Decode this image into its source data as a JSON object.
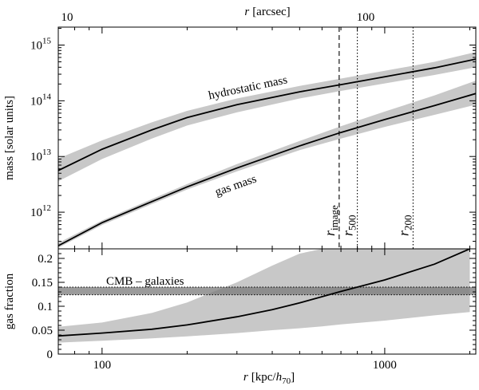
{
  "chart_data": [
    {
      "type": "line",
      "panel": "top",
      "xscale": "log",
      "yscale": "log",
      "xlim": [
        70,
        2100
      ],
      "ylim": [
        220000000000.0,
        2100000000000000.0
      ],
      "top_axis": {
        "label_var": "r",
        "label_unit": "[arcsec]",
        "ticks": [
          {
            "value": 10,
            "label": "10"
          },
          {
            "value": 100,
            "label": "100"
          }
        ]
      },
      "ylabel": "mass [solar units]",
      "yticks": [
        {
          "value": 1000000000000.0,
          "base": "10",
          "exp": "12"
        },
        {
          "value": 10000000000000.0,
          "base": "10",
          "exp": "13"
        },
        {
          "value": 100000000000000.0,
          "base": "10",
          "exp": "14"
        },
        {
          "value": 1000000000000000.0,
          "base": "10",
          "exp": "15"
        }
      ],
      "series": [
        {
          "name": "hydrostatic mass",
          "x": [
            70,
            100,
            150,
            200,
            300,
            500,
            700,
            1000,
            1500,
            2100
          ],
          "y": [
            5600000000000.0,
            13500000000000.0,
            30000000000000.0,
            50000000000000.0,
            85000000000000.0,
            145000000000000.0,
            195000000000000.0,
            270000000000000.0,
            390000000000000.0,
            560000000000000.0
          ],
          "lower": [
            3600000000000.0,
            9000000000000.0,
            21000000000000.0,
            36000000000000.0,
            62000000000000.0,
            110000000000000.0,
            150000000000000.0,
            205000000000000.0,
            290000000000000.0,
            400000000000000.0
          ],
          "upper": [
            9200000000000.0,
            19500000000000.0,
            41000000000000.0,
            66000000000000.0,
            110000000000000.0,
            185000000000000.0,
            250000000000000.0,
            345000000000000.0,
            500000000000000.0,
            750000000000000.0
          ]
        },
        {
          "name": "gas mass",
          "x": [
            70,
            100,
            150,
            200,
            300,
            500,
            700,
            1000,
            1500,
            2100
          ],
          "y": [
            250000000000.0,
            650000000000.0,
            1550000000000.0,
            2850000000000.0,
            6200000000000.0,
            15500000000000.0,
            27000000000000.0,
            46000000000000.0,
            82000000000000.0,
            135000000000000.0
          ],
          "lower": [
            230000000000.0,
            590000000000.0,
            1400000000000.0,
            2550000000000.0,
            5400000000000.0,
            13000000000000.0,
            21000000000000.0,
            34000000000000.0,
            56000000000000.0,
            85000000000000.0
          ],
          "upper": [
            280000000000.0,
            710000000000.0,
            1720000000000.0,
            3200000000000.0,
            7300000000000.0,
            19000000000000.0,
            35000000000000.0,
            64000000000000.0,
            125000000000000.0,
            230000000000000.0
          ]
        }
      ],
      "vlines": [
        {
          "x": 690,
          "style": "dashed",
          "label_main": "r",
          "label_sub": "image"
        },
        {
          "x": 800,
          "style": "dotted",
          "label_main": "r",
          "label_sub": "500"
        },
        {
          "x": 1260,
          "style": "dotted",
          "label_main": "r",
          "label_sub": "200"
        }
      ],
      "band_color": "#c8c8c8",
      "grid": false
    },
    {
      "type": "line",
      "panel": "bottom",
      "xscale": "log",
      "xlim": [
        70,
        2100
      ],
      "ylim": [
        0,
        0.22
      ],
      "xlabel_var": "r",
      "xlabel_pre": "[kpc/",
      "xlabel_h": "h",
      "xlabel_sub": "70",
      "xlabel_post": "]",
      "xticks": [
        {
          "value": 100,
          "label": "100"
        },
        {
          "value": 1000,
          "label": "1000"
        }
      ],
      "ylabel": "gas fraction",
      "yticks": [
        {
          "value": 0,
          "label": "0"
        },
        {
          "value": 0.05,
          "label": "0.05"
        },
        {
          "value": 0.1,
          "label": "0.1"
        },
        {
          "value": 0.15,
          "label": "0.15"
        },
        {
          "value": 0.2,
          "label": "0.2"
        }
      ],
      "series": [
        {
          "name": "gas fraction",
          "x": [
            70,
            100,
            150,
            200,
            300,
            400,
            500,
            600,
            700,
            1000,
            1500,
            2000
          ],
          "y": [
            0.038,
            0.044,
            0.052,
            0.061,
            0.078,
            0.093,
            0.107,
            0.12,
            0.131,
            0.155,
            0.188,
            0.22
          ],
          "lower": [
            0.024,
            0.028,
            0.033,
            0.037,
            0.044,
            0.05,
            0.054,
            0.058,
            0.062,
            0.07,
            0.081,
            0.088
          ],
          "upper": [
            0.057,
            0.066,
            0.086,
            0.108,
            0.15,
            0.185,
            0.21,
            0.22,
            0.22,
            0.22,
            0.22,
            0.22
          ]
        }
      ],
      "hband": {
        "label": "CMB – galaxies",
        "y0": 0.124,
        "y1": 0.14,
        "color": "#7a7a7a"
      },
      "band_color": "#c8c8c8",
      "grid": false
    }
  ]
}
